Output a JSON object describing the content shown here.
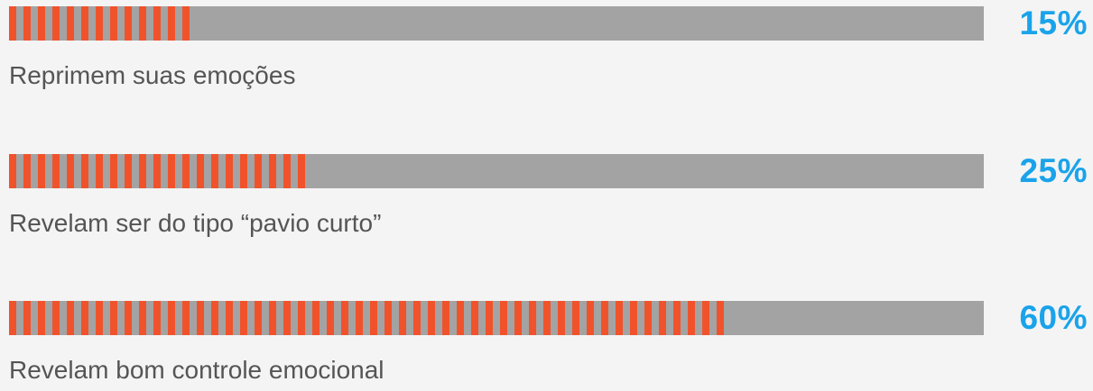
{
  "chart_data": {
    "type": "bar",
    "orientation": "horizontal",
    "categories": [
      "Reprimem suas emoções",
      "Revelam ser do tipo “pavio curto”",
      "Revelam bom controle emocional"
    ],
    "values": [
      15,
      25,
      60
    ],
    "value_labels": [
      "15%",
      "25%",
      "60%"
    ],
    "unit": "%",
    "xlim": [
      0,
      100
    ],
    "colors": {
      "fill": "#f0532b",
      "track": "#a3a3a3",
      "value_text": "#1aa3ea",
      "label_text": "#555555",
      "background": "#f4f4f4"
    }
  }
}
